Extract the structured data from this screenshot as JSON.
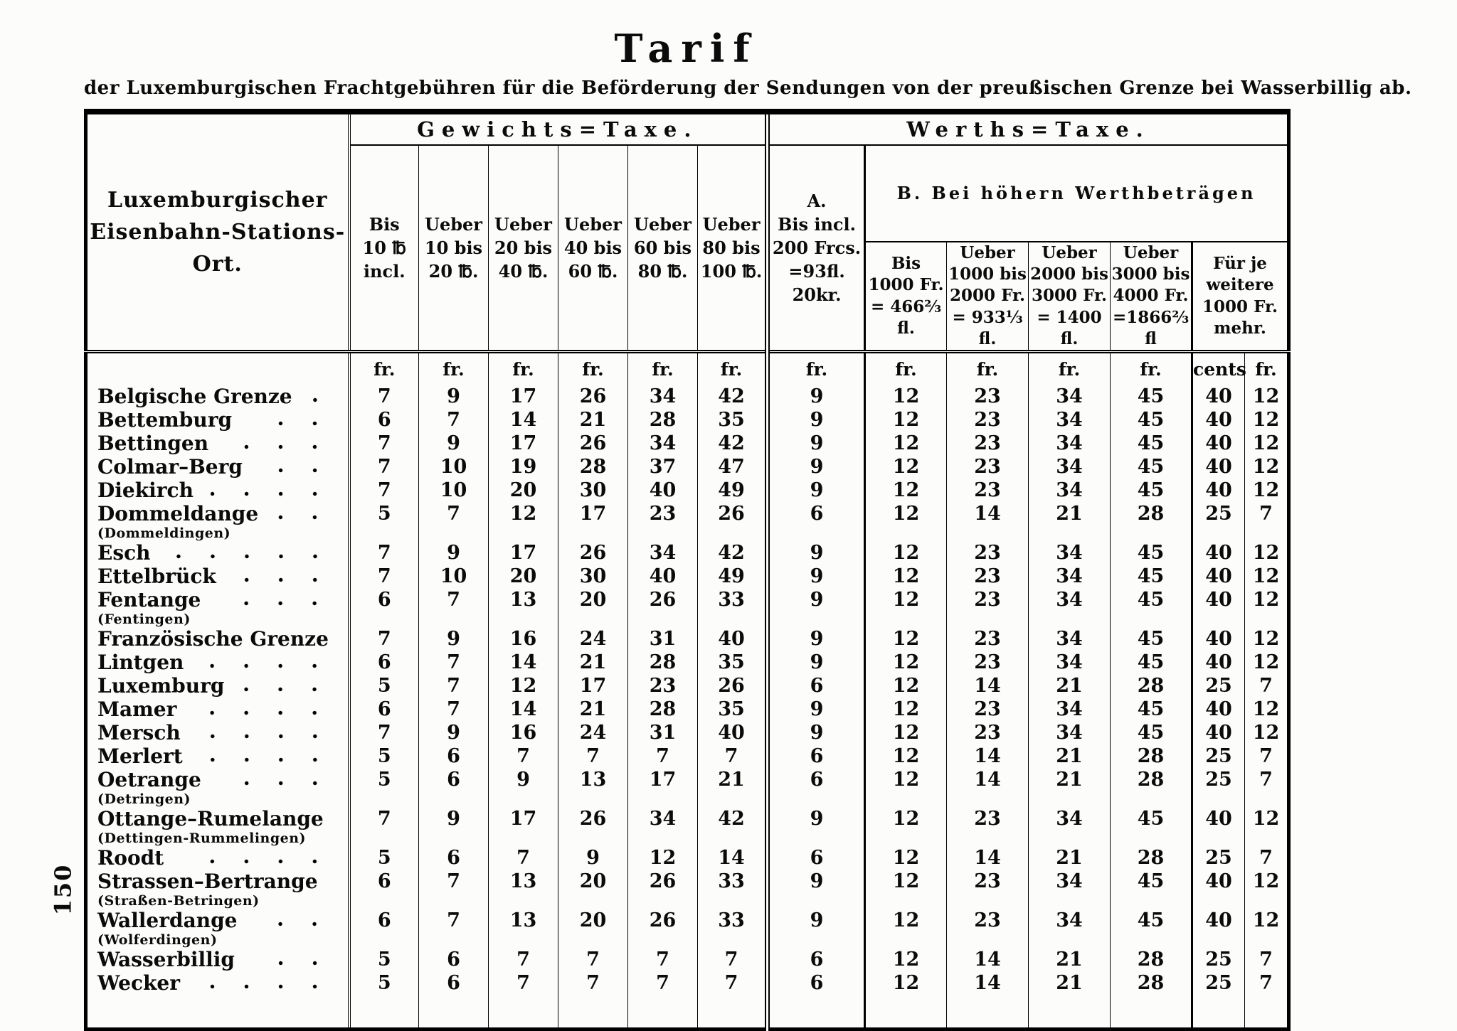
{
  "page": {
    "number": "150",
    "title": "Tarif",
    "subtitle": "der Luxemburgischen Frachtgebühren für die Beförderung der Sendungen von der preußischen Grenze bei Wasserbillig ab."
  },
  "table": {
    "station_header": "Luxemburgischer\nEisenbahn-Stations-\nOrt.",
    "gewichts_title": "Gewichts=Taxe.",
    "werths_title": "Werths=Taxe.",
    "b_title": "B.  Bei höhern Werthbeträgen",
    "weight_columns": [
      "Bis\n10 ℔\nincl.",
      "Ueber\n10 bis\n20 ℔.",
      "Ueber\n20 bis\n40 ℔.",
      "Ueber\n40 bis\n60 ℔.",
      "Ueber\n60 bis\n80 ℔.",
      "Ueber\n80 bis\n100 ℔."
    ],
    "a_column": "A.\nBis incl.\n200 Frcs.\n=93fl. 20kr.",
    "b_columns": [
      "Bis\n1000 Fr.\n= 466⅔ fl.",
      "Ueber\n1000 bis\n2000 Fr.\n= 933⅓ fl.",
      "Ueber\n2000 bis\n3000 Fr.\n= 1400 fl.",
      "Ueber\n3000 bis\n4000 Fr.\n=1866⅔ fl"
    ],
    "fuer_je_column": "Für je\nweitere\n1000 Fr.\nmehr.",
    "units": [
      "fr.",
      "fr.",
      "fr.",
      "fr.",
      "fr.",
      "fr.",
      "fr.",
      "fr.",
      "fr.",
      "fr.",
      "fr.",
      "cents",
      "fr."
    ],
    "rows": [
      {
        "name": "Belgische Grenze",
        "sub": "",
        "values": [
          7,
          9,
          17,
          26,
          34,
          42,
          9,
          12,
          23,
          34,
          45,
          40,
          12
        ]
      },
      {
        "name": "Bettemburg",
        "sub": "",
        "values": [
          6,
          7,
          14,
          21,
          28,
          35,
          9,
          12,
          23,
          34,
          45,
          40,
          12
        ]
      },
      {
        "name": "Bettingen",
        "sub": "",
        "values": [
          7,
          9,
          17,
          26,
          34,
          42,
          9,
          12,
          23,
          34,
          45,
          40,
          12
        ]
      },
      {
        "name": "Colmar–Berg",
        "sub": "",
        "values": [
          7,
          10,
          19,
          28,
          37,
          47,
          9,
          12,
          23,
          34,
          45,
          40,
          12
        ]
      },
      {
        "name": "Diekirch",
        "sub": "",
        "values": [
          7,
          10,
          20,
          30,
          40,
          49,
          9,
          12,
          23,
          34,
          45,
          40,
          12
        ]
      },
      {
        "name": "Dommeldange",
        "sub": "(Dommeldingen)",
        "values": [
          5,
          7,
          12,
          17,
          23,
          26,
          6,
          12,
          14,
          21,
          28,
          25,
          7
        ]
      },
      {
        "name": "Esch",
        "sub": "",
        "values": [
          7,
          9,
          17,
          26,
          34,
          42,
          9,
          12,
          23,
          34,
          45,
          40,
          12
        ]
      },
      {
        "name": "Ettelbrück",
        "sub": "",
        "values": [
          7,
          10,
          20,
          30,
          40,
          49,
          9,
          12,
          23,
          34,
          45,
          40,
          12
        ]
      },
      {
        "name": "Fentange",
        "sub": "(Fentingen)",
        "values": [
          6,
          7,
          13,
          20,
          26,
          33,
          9,
          12,
          23,
          34,
          45,
          40,
          12
        ]
      },
      {
        "name": "Französische Grenze",
        "sub": "",
        "values": [
          7,
          9,
          16,
          24,
          31,
          40,
          9,
          12,
          23,
          34,
          45,
          40,
          12
        ]
      },
      {
        "name": "Lintgen",
        "sub": "",
        "values": [
          6,
          7,
          14,
          21,
          28,
          35,
          9,
          12,
          23,
          34,
          45,
          40,
          12
        ]
      },
      {
        "name": "Luxemburg",
        "sub": "",
        "values": [
          5,
          7,
          12,
          17,
          23,
          26,
          6,
          12,
          14,
          21,
          28,
          25,
          7
        ]
      },
      {
        "name": "Mamer",
        "sub": "",
        "values": [
          6,
          7,
          14,
          21,
          28,
          35,
          9,
          12,
          23,
          34,
          45,
          40,
          12
        ]
      },
      {
        "name": "Mersch",
        "sub": "",
        "values": [
          7,
          9,
          16,
          24,
          31,
          40,
          9,
          12,
          23,
          34,
          45,
          40,
          12
        ]
      },
      {
        "name": "Merlert",
        "sub": "",
        "values": [
          5,
          6,
          7,
          7,
          7,
          7,
          6,
          12,
          14,
          21,
          28,
          25,
          7
        ]
      },
      {
        "name": "Oetrange",
        "sub": "(Detringen)",
        "values": [
          5,
          6,
          9,
          13,
          17,
          21,
          6,
          12,
          14,
          21,
          28,
          25,
          7
        ]
      },
      {
        "name": "Ottange–Rumelange",
        "sub": "(Dettingen-Rummelingen)",
        "values": [
          7,
          9,
          17,
          26,
          34,
          42,
          9,
          12,
          23,
          34,
          45,
          40,
          12
        ]
      },
      {
        "name": "Roodt",
        "sub": "",
        "values": [
          5,
          6,
          7,
          9,
          12,
          14,
          6,
          12,
          14,
          21,
          28,
          25,
          7
        ]
      },
      {
        "name": "Strassen–Bertrange",
        "sub": "(Straßen-Betringen)",
        "values": [
          6,
          7,
          13,
          20,
          26,
          33,
          9,
          12,
          23,
          34,
          45,
          40,
          12
        ]
      },
      {
        "name": "Wallerdange",
        "sub": "(Wolferdingen)",
        "values": [
          6,
          7,
          13,
          20,
          26,
          33,
          9,
          12,
          23,
          34,
          45,
          40,
          12
        ]
      },
      {
        "name": "Wasserbillig",
        "sub": "",
        "values": [
          5,
          6,
          7,
          7,
          7,
          7,
          6,
          12,
          14,
          21,
          28,
          25,
          7
        ]
      },
      {
        "name": "Wecker",
        "sub": "",
        "values": [
          5,
          6,
          7,
          7,
          7,
          7,
          6,
          12,
          14,
          21,
          28,
          25,
          7
        ]
      }
    ]
  }
}
